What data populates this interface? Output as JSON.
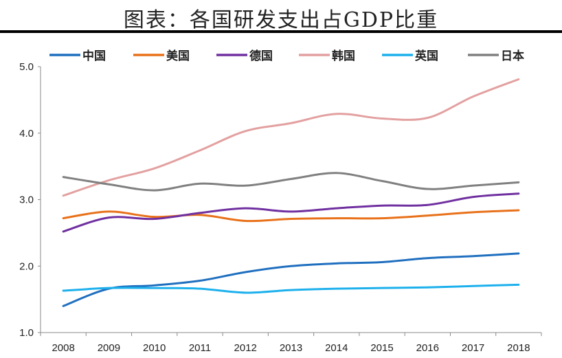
{
  "chart_data": {
    "type": "line",
    "title": "图表：各国研发支出占GDP比重",
    "xlabel": "",
    "ylabel": "",
    "categories": [
      "2008",
      "2009",
      "2010",
      "2011",
      "2012",
      "2013",
      "2014",
      "2015",
      "2016",
      "2017",
      "2018"
    ],
    "ylim": [
      1.0,
      5.0
    ],
    "yticks": [
      "1.0",
      "2.0",
      "3.0",
      "4.0",
      "5.0"
    ],
    "grid": false,
    "legend_position": "top",
    "series": [
      {
        "name": "中国",
        "color": "#1f6fbf",
        "values": [
          1.4,
          1.66,
          1.71,
          1.78,
          1.91,
          2.0,
          2.04,
          2.06,
          2.12,
          2.15,
          2.19
        ]
      },
      {
        "name": "美国",
        "color": "#e8711a",
        "values": [
          2.72,
          2.82,
          2.74,
          2.77,
          2.68,
          2.71,
          2.72,
          2.72,
          2.76,
          2.81,
          2.84
        ]
      },
      {
        "name": "德国",
        "color": "#7030a0",
        "values": [
          2.52,
          2.73,
          2.71,
          2.8,
          2.87,
          2.82,
          2.87,
          2.91,
          2.92,
          3.04,
          3.09
        ]
      },
      {
        "name": "韩国",
        "color": "#e3a0a0",
        "values": [
          3.06,
          3.29,
          3.47,
          3.74,
          4.03,
          4.15,
          4.29,
          4.22,
          4.23,
          4.55,
          4.81
        ]
      },
      {
        "name": "英国",
        "color": "#1cb0ec",
        "values": [
          1.63,
          1.67,
          1.67,
          1.66,
          1.6,
          1.64,
          1.66,
          1.67,
          1.68,
          1.7,
          1.72
        ]
      },
      {
        "name": "日本",
        "color": "#808080",
        "values": [
          3.34,
          3.23,
          3.14,
          3.24,
          3.21,
          3.31,
          3.4,
          3.28,
          3.16,
          3.21,
          3.26
        ]
      }
    ]
  }
}
